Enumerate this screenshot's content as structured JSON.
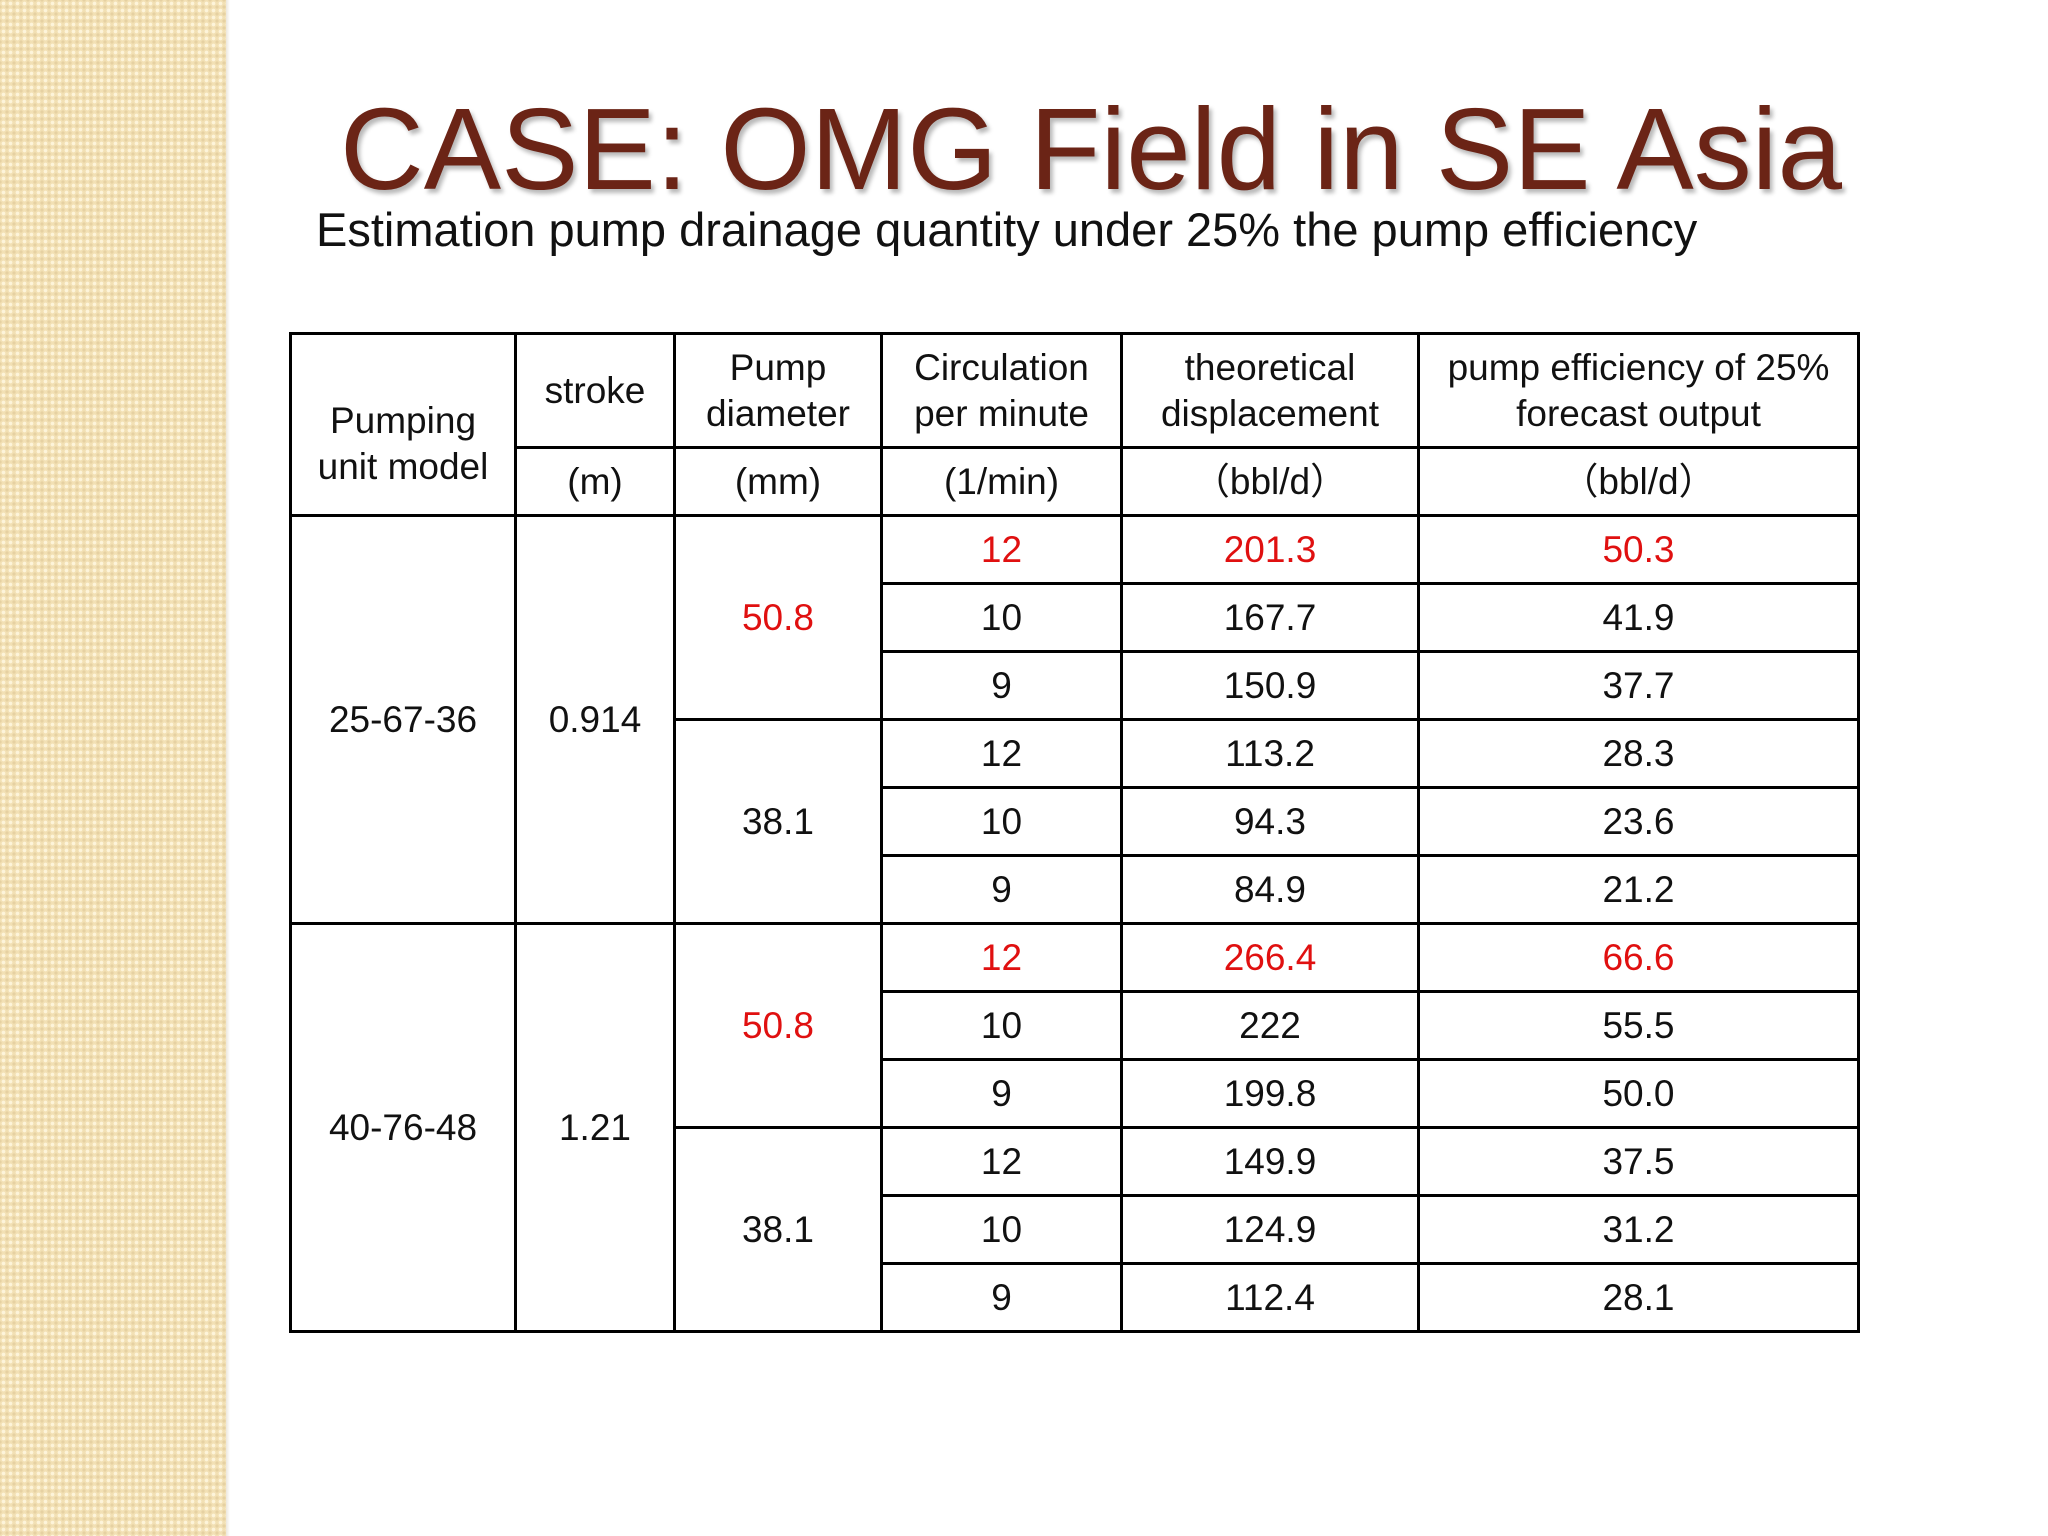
{
  "slide": {
    "title": "CASE: OMG Field in SE Asia",
    "subtitle": "Estimation pump drainage quantity under 25% the pump efficiency"
  },
  "table": {
    "headers": {
      "model": "Pumping unit model",
      "stroke": "stroke",
      "diameter": "Pump diameter",
      "circulation": "Circulation per minute",
      "displacement": "theoretical displacement",
      "output": "pump efficiency of 25% forecast output"
    },
    "units": {
      "stroke": "(m)",
      "diameter": "(mm)",
      "circulation": "(1/min)",
      "displacement": "（bbl/d）",
      "output": "（bbl/d）"
    },
    "groups": [
      {
        "model": "25-67-36",
        "stroke": "0.914",
        "diameters": [
          {
            "diameter": "50.8",
            "rows": [
              {
                "circulation": "12",
                "displacement": "201.3",
                "output": "50.3"
              },
              {
                "circulation": "10",
                "displacement": "167.7",
                "output": "41.9"
              },
              {
                "circulation": "9",
                "displacement": "150.9",
                "output": "37.7"
              }
            ]
          },
          {
            "diameter": "38.1",
            "rows": [
              {
                "circulation": "12",
                "displacement": "113.2",
                "output": "28.3"
              },
              {
                "circulation": "10",
                "displacement": "94.3",
                "output": "23.6"
              },
              {
                "circulation": "9",
                "displacement": "84.9",
                "output": "21.2"
              }
            ]
          }
        ]
      },
      {
        "model": "40-76-48",
        "stroke": "1.21",
        "diameters": [
          {
            "diameter": "50.8",
            "rows": [
              {
                "circulation": "12",
                "displacement": "266.4",
                "output": "66.6"
              },
              {
                "circulation": "10",
                "displacement": "222",
                "output": "55.5"
              },
              {
                "circulation": "9",
                "displacement": "199.8",
                "output": "50.0"
              }
            ]
          },
          {
            "diameter": "38.1",
            "rows": [
              {
                "circulation": "12",
                "displacement": "149.9",
                "output": "37.5"
              },
              {
                "circulation": "10",
                "displacement": "124.9",
                "output": "31.2"
              },
              {
                "circulation": "9",
                "displacement": "112.4",
                "output": "28.1"
              }
            ]
          }
        ]
      }
    ]
  },
  "colors": {
    "title": "#6b2416",
    "highlight": "#e01010",
    "text": "#111111",
    "side_band": "#f2e0b4"
  }
}
